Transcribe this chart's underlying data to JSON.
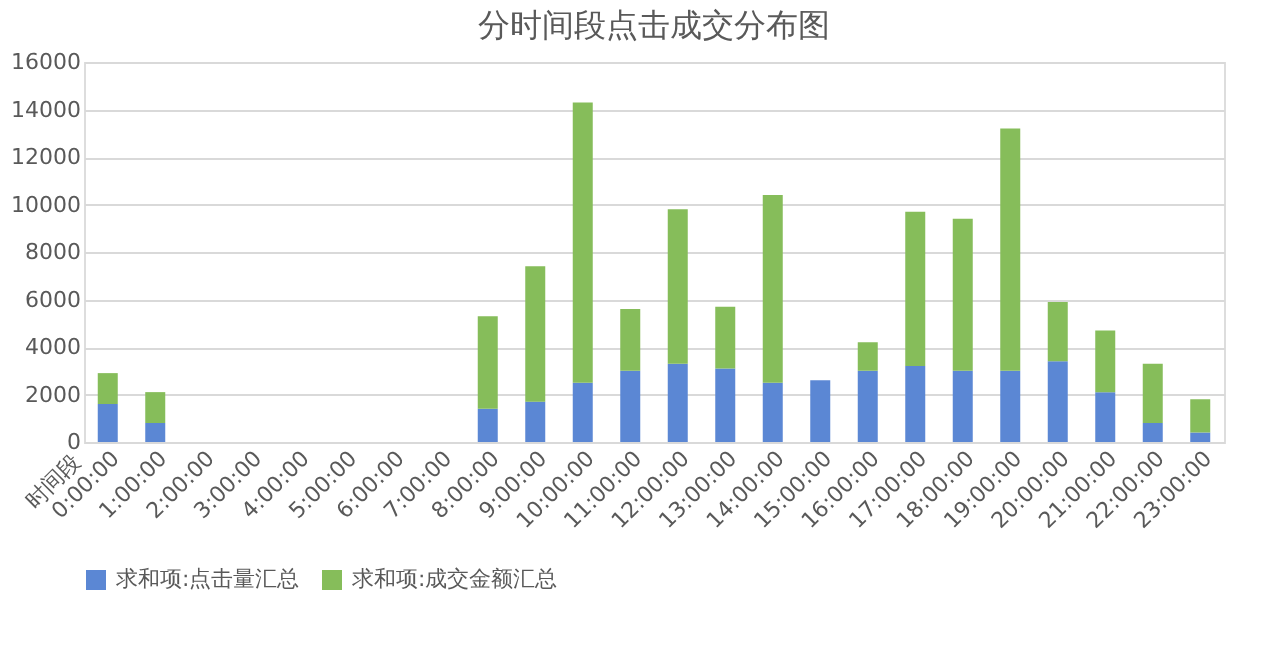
{
  "chart_data": {
    "type": "bar",
    "title": "分时间段点击成交分布图",
    "xlabel": "时间段",
    "stacked": true,
    "grid": "y",
    "legend": "bottom",
    "categories": [
      "0:00:00",
      "1:00:00",
      "2:00:00",
      "3:00:00",
      "4:00:00",
      "5:00:00",
      "6:00:00",
      "7:00:00",
      "8:00:00",
      "9:00:00",
      "10:00:00",
      "11:00:00",
      "12:00:00",
      "13:00:00",
      "14:00:00",
      "15:00:00",
      "16:00:00",
      "17:00:00",
      "18:00:00",
      "19:00:00",
      "20:00:00",
      "21:00:00",
      "22:00:00",
      "23:00:00"
    ],
    "series": [
      {
        "name": "求和项:点击量汇总",
        "color": "#5b87d4",
        "values": [
          1600,
          800,
          0,
          0,
          0,
          0,
          0,
          0,
          1400,
          1700,
          2500,
          3000,
          3300,
          3100,
          2500,
          2600,
          3000,
          3200,
          3000,
          3000,
          3400,
          2100,
          800,
          400
        ]
      },
      {
        "name": "求和项:成交金额汇总",
        "color": "#86bd5a",
        "values": [
          1300,
          1300,
          0,
          0,
          0,
          0,
          0,
          0,
          3900,
          5700,
          11800,
          2600,
          6500,
          2600,
          7900,
          0,
          1200,
          6500,
          6400,
          10200,
          2500,
          2600,
          2500,
          1400
        ]
      }
    ],
    "ylim": [
      0,
      16000
    ],
    "yticks": [
      0,
      2000,
      4000,
      6000,
      8000,
      10000,
      12000,
      14000,
      16000
    ]
  }
}
